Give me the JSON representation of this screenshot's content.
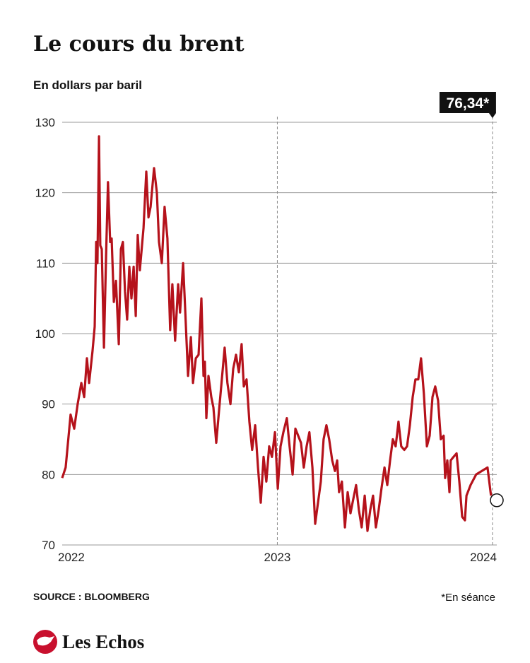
{
  "chart_data": {
    "type": "line",
    "title": "Le cours du brent",
    "subtitle": "En dollars par baril",
    "source": "SOURCE : BLOOMBERG",
    "note": "*En séance",
    "logo": "Les Echos",
    "annotation": {
      "value": 76.34,
      "label": "76,34*"
    },
    "xlim": [
      2022,
      2024.02
    ],
    "xticks": [
      2022,
      2023,
      2024
    ],
    "ylim": [
      70,
      130
    ],
    "yticks": [
      70,
      80,
      90,
      100,
      110,
      120,
      130
    ],
    "grid": true,
    "series": [
      {
        "name": "Brent",
        "color": "#b5121b",
        "x": [
          2022.0,
          2022.016,
          2022.039,
          2022.056,
          2022.072,
          2022.089,
          2022.102,
          2022.115,
          2022.125,
          2022.141,
          2022.151,
          2022.158,
          2022.164,
          2022.171,
          2022.177,
          2022.184,
          2022.194,
          2022.204,
          2022.213,
          2022.223,
          2022.23,
          2022.24,
          2022.25,
          2022.263,
          2022.273,
          2022.282,
          2022.292,
          2022.302,
          2022.312,
          2022.322,
          2022.332,
          2022.342,
          2022.351,
          2022.361,
          2022.378,
          2022.391,
          2022.401,
          2022.411,
          2022.427,
          2022.44,
          2022.45,
          2022.463,
          2022.476,
          2022.489,
          2022.502,
          2022.512,
          2022.525,
          2022.539,
          2022.548,
          2022.562,
          2022.571,
          2022.585,
          2022.598,
          2022.608,
          2022.621,
          2022.634,
          2022.647,
          2022.657,
          2022.663,
          2022.67,
          2022.68,
          2022.693,
          2022.703,
          2022.716,
          2022.729,
          2022.742,
          2022.755,
          2022.768,
          2022.782,
          2022.795,
          2022.808,
          2022.821,
          2022.834,
          2022.844,
          2022.857,
          2022.87,
          2022.883,
          2022.897,
          2022.91,
          2022.923,
          2022.936,
          2022.949,
          2022.962,
          2022.975,
          2022.989,
          2023.002,
          2023.015,
          2023.028,
          2023.044,
          2023.057,
          2023.071,
          2023.084,
          2023.097,
          2023.11,
          2023.123,
          2023.136,
          2023.149,
          2023.163,
          2023.176,
          2023.189,
          2023.202,
          2023.215,
          2023.228,
          2023.241,
          2023.255,
          2023.268,
          2023.278,
          2023.287,
          2023.3,
          2023.314,
          2023.327,
          2023.34,
          2023.353,
          2023.366,
          2023.379,
          2023.392,
          2023.406,
          2023.419,
          2023.432,
          2023.445,
          2023.458,
          2023.471,
          2023.484,
          2023.498,
          2023.511,
          2023.524,
          2023.537,
          2023.55,
          2023.563,
          2023.576,
          2023.59,
          2023.603,
          2023.616,
          2023.629,
          2023.642,
          2023.655,
          2023.668,
          2023.681,
          2023.695,
          2023.708,
          2023.721,
          2023.734,
          2023.747,
          2023.76,
          2023.773,
          2023.78,
          2023.79,
          2023.8,
          2023.806,
          2023.819,
          2023.833,
          2023.846,
          2023.859,
          2023.872,
          2023.879,
          2023.898,
          2023.924,
          2023.977,
          2023.993
        ],
        "values": [
          79.5,
          81,
          88.5,
          86.5,
          90,
          93,
          91,
          96.5,
          93,
          97.5,
          101,
          113,
          110,
          128,
          112.5,
          112,
          98,
          111,
          121.5,
          113,
          113.5,
          104.5,
          107.5,
          98.5,
          112,
          113,
          106,
          102,
          109.5,
          105,
          109.5,
          102.5,
          114,
          109,
          115,
          123,
          116.5,
          118,
          123.5,
          120,
          113,
          110,
          118,
          113.5,
          100.5,
          107,
          99,
          107,
          103,
          110,
          104,
          94,
          99.5,
          93,
          96.5,
          97,
          105,
          94,
          96,
          88,
          94,
          91,
          89.5,
          84.5,
          89,
          93.5,
          98,
          93,
          90,
          95,
          97,
          94.5,
          98.5,
          92.5,
          93.5,
          87.5,
          83.5,
          87,
          81,
          76,
          82.5,
          79,
          84,
          82.5,
          86,
          78,
          84,
          86,
          88,
          84,
          80,
          86.5,
          85.5,
          84.5,
          81,
          84,
          86,
          81,
          73,
          76,
          79,
          85,
          87,
          85,
          82,
          80.5,
          82,
          77.5,
          79,
          72.5,
          77.5,
          74.5,
          76.5,
          78.5,
          75,
          72.5,
          77,
          72,
          75,
          77,
          72.5,
          75,
          78,
          81,
          78.5,
          82,
          85,
          84,
          87.5,
          84,
          83.5,
          84,
          87,
          91,
          93.5,
          93.5,
          96.5,
          91.5,
          84,
          85.5,
          91,
          92.5,
          90.5,
          85,
          85.5,
          79.5,
          82,
          77.5,
          82,
          82.5,
          83,
          79,
          74,
          73.5,
          77,
          78.5,
          80,
          81,
          77
        ]
      }
    ]
  }
}
